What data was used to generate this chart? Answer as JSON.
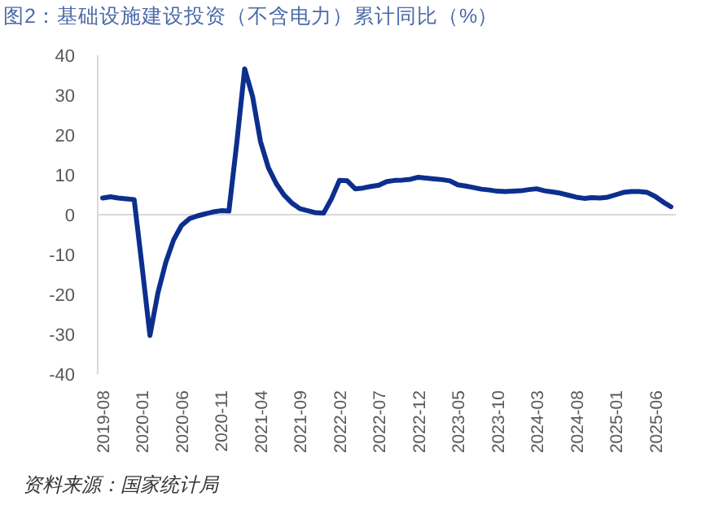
{
  "chart_data": {
    "type": "line",
    "title": "图2：基础设施建设投资（不含电力）累计同比（%）",
    "categories": [
      "2019-08",
      null,
      null,
      null,
      null,
      "2020-01",
      null,
      null,
      null,
      null,
      "2020-06",
      null,
      null,
      null,
      null,
      "2020-11",
      null,
      null,
      null,
      null,
      "2021-04",
      null,
      null,
      null,
      null,
      "2021-09",
      null,
      null,
      null,
      null,
      "2022-02",
      null,
      null,
      null,
      null,
      "2022-07",
      null,
      null,
      null,
      null,
      "2022-12",
      null,
      null,
      null,
      null,
      "2023-05",
      null,
      null,
      null,
      null,
      "2023-10",
      null,
      null,
      null,
      null,
      "2024-03",
      null,
      null,
      null,
      null,
      "2024-08",
      null,
      null,
      null,
      null,
      "2025-01",
      null,
      null,
      null,
      null,
      "2025-06",
      null,
      null
    ],
    "series": [
      {
        "color": "#0c2f8e",
        "values": [
          4.2,
          4.5,
          4.2,
          4.0,
          3.8,
          -13,
          -30.3,
          -19.7,
          -12,
          -6.3,
          -2.7,
          -1,
          -0.3,
          0.2,
          0.7,
          1.0,
          0.9,
          18,
          36.6,
          29.7,
          18.4,
          11.8,
          7.8,
          4.9,
          2.9,
          1.5,
          1.0,
          0.5,
          0.4,
          4,
          8.6,
          8.5,
          6.5,
          6.7,
          7.1,
          7.4,
          8.3,
          8.6,
          8.7,
          8.9,
          9.4,
          9.2,
          9.0,
          8.8,
          8.5,
          7.5,
          7.2,
          6.8,
          6.4,
          6.2,
          5.9,
          5.8,
          5.9,
          6.0,
          6.3,
          6.5,
          6.0,
          5.7,
          5.4,
          4.9,
          4.4,
          4.1,
          4.3,
          4.2,
          4.4,
          5.0,
          5.6,
          5.8,
          5.8,
          5.6,
          4.6,
          3.2,
          2.0
        ]
      }
    ],
    "ylim": [
      -40,
      40
    ],
    "yticks": [
      -40,
      -30,
      -20,
      -10,
      0,
      10,
      20,
      30,
      40
    ],
    "annotations": [
      "资料来源：国家统计局"
    ]
  }
}
